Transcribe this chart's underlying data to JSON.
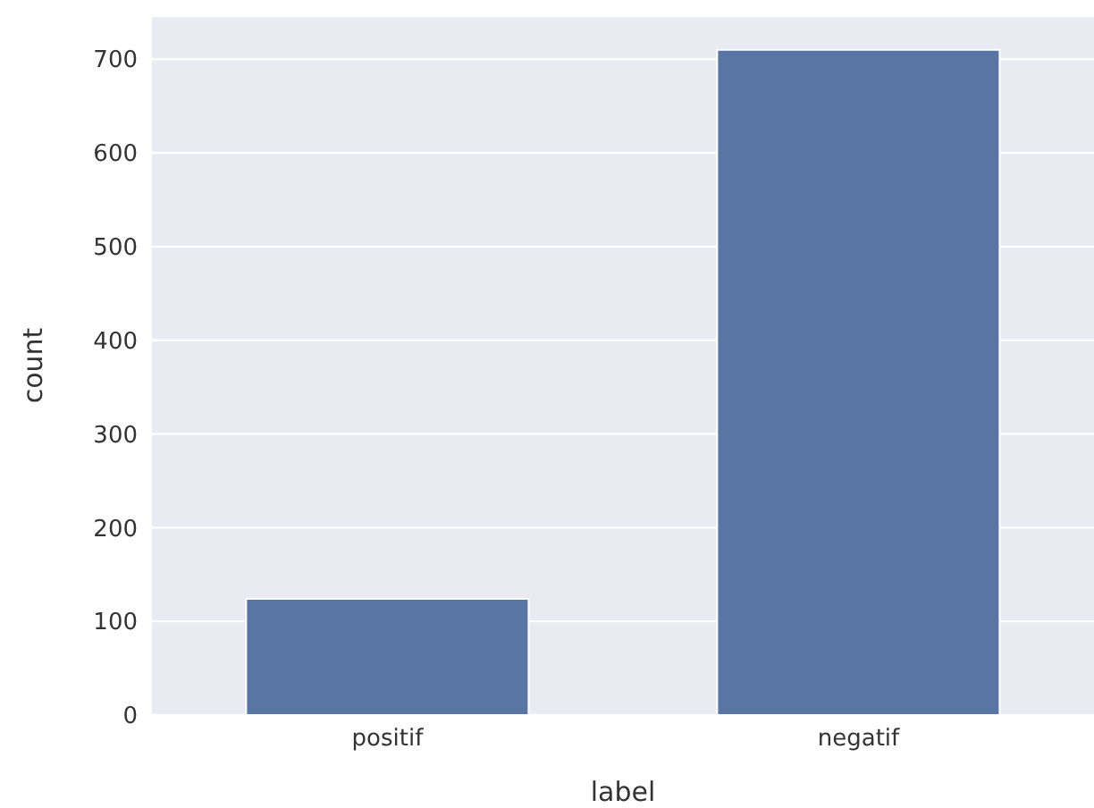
{
  "chart_data": {
    "type": "bar",
    "xlabel": "label",
    "ylabel": "count",
    "categories": [
      "positif",
      "negatif"
    ],
    "values": [
      124,
      710
    ],
    "color": "#5875a4",
    "ylim": [
      0,
      746
    ],
    "yticks": [
      0,
      100,
      200,
      300,
      400,
      500,
      600,
      700
    ],
    "grid": "y"
  }
}
